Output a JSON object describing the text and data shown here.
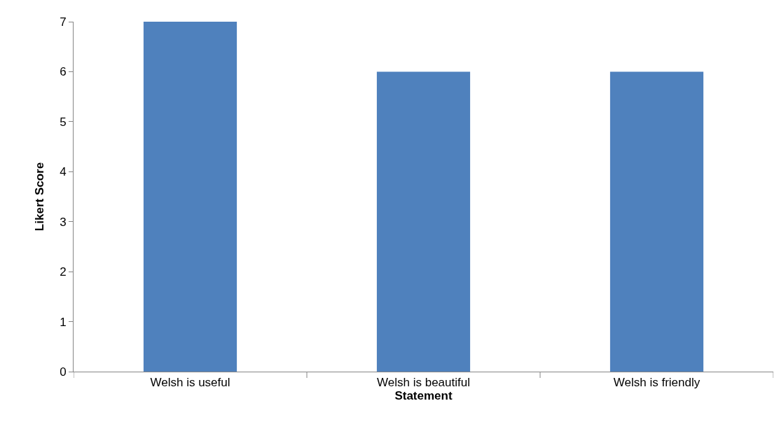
{
  "chart_data": {
    "type": "bar",
    "xlabel": "Statement",
    "ylabel": "Likert Score",
    "categories": [
      "Welsh is useful",
      "Welsh is beautiful",
      "Welsh is friendly"
    ],
    "values": [
      7,
      6,
      6
    ],
    "color": "#4f81bd",
    "ylim": [
      0,
      7
    ],
    "yticks": [
      0,
      1,
      2,
      3,
      4,
      5,
      6,
      7
    ]
  }
}
